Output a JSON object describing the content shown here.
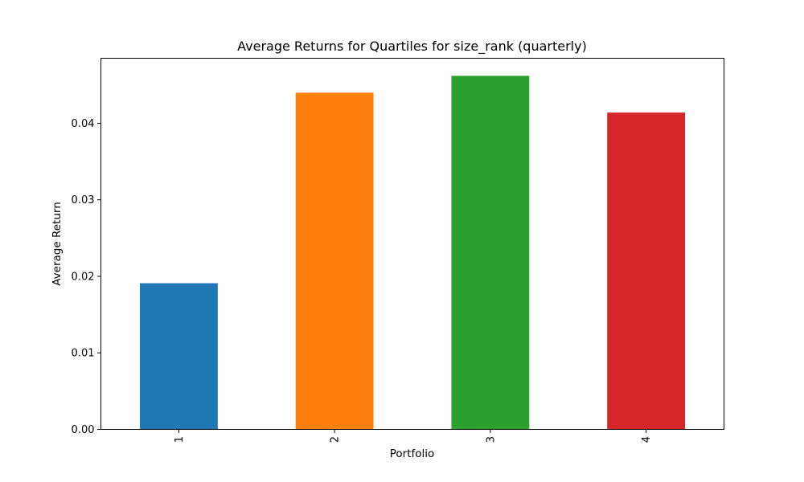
{
  "chart_data": {
    "type": "bar",
    "title": "Average Returns for Quartiles for size_rank (quarterly)",
    "xlabel": "Portfolio",
    "ylabel": "Average Return",
    "categories": [
      "1",
      "2",
      "3",
      "4"
    ],
    "values": [
      0.0191,
      0.044,
      0.0462,
      0.0414
    ],
    "colors": [
      "#1f77b4",
      "#ff7f0e",
      "#2ca02c",
      "#d62728"
    ],
    "ylim": [
      0,
      0.0485
    ],
    "yticks": [
      0.0,
      0.01,
      0.02,
      0.03,
      0.04
    ],
    "ytick_labels": [
      "0.00",
      "0.01",
      "0.02",
      "0.03",
      "0.04"
    ],
    "grid": false,
    "legend": "none"
  }
}
